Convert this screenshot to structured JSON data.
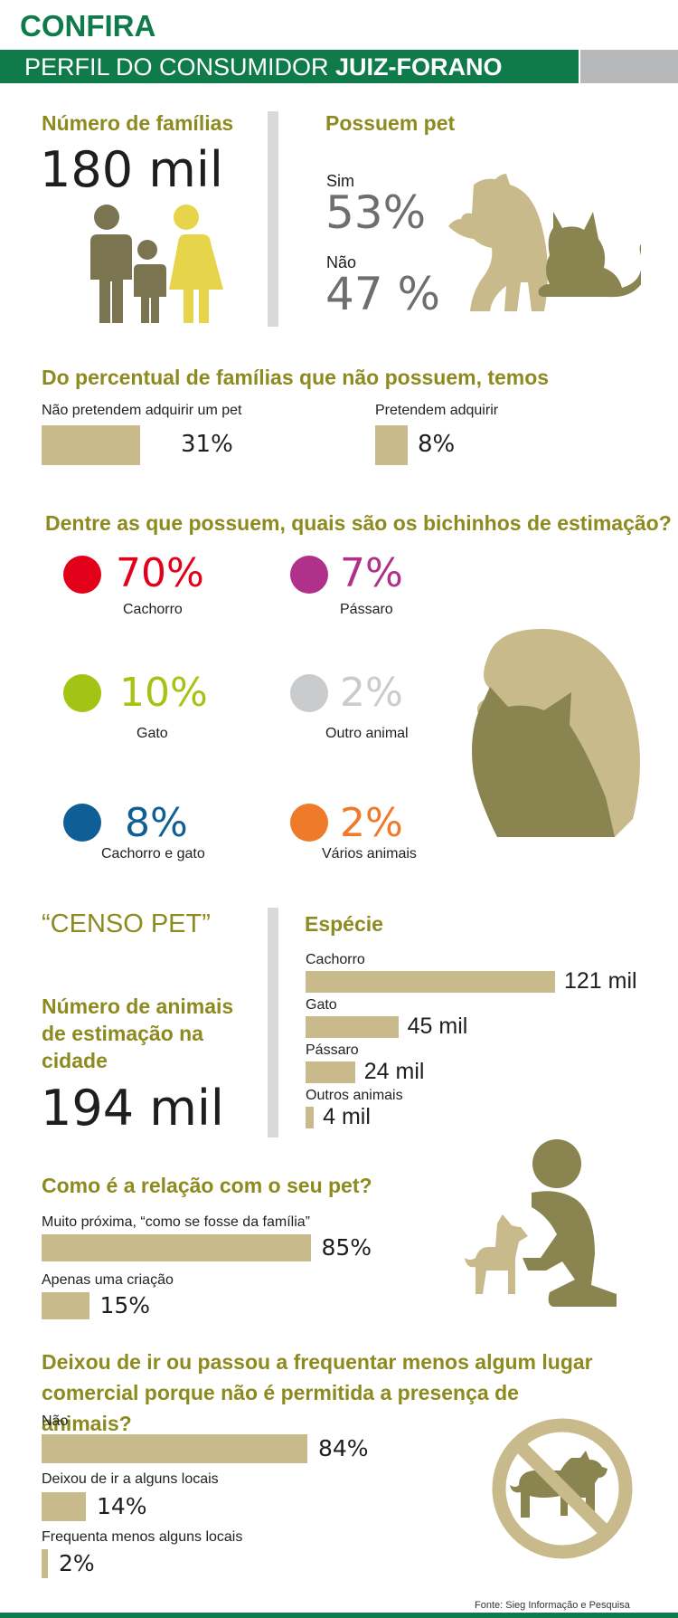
{
  "header": {
    "confira": "CONFIRA",
    "title_prefix": "PERFIL DO CONSUMIDOR ",
    "title_bold": "JUIZ-FORANO"
  },
  "familias": {
    "heading": "Número de famílias",
    "value": "180 mil"
  },
  "possuem": {
    "heading": "Possuem pet",
    "sim_label": "Sim",
    "sim_value": "53%",
    "nao_label": "Não",
    "nao_value": "47 %"
  },
  "nao_possuem": {
    "heading": "Do percentual de famílias que não possuem, temos",
    "items": [
      {
        "label": "Não pretendem adquirir um pet",
        "value": "31%",
        "fraction": 0.31
      },
      {
        "label": "Pretendem adquirir",
        "value": "8%",
        "fraction": 0.08
      }
    ]
  },
  "bichinhos": {
    "heading": "Dentre as que possuem, quais são os bichinhos de estimação?",
    "items": [
      {
        "value": "70%",
        "label": "Cachorro",
        "color": "#e2001a"
      },
      {
        "value": "7%",
        "label": "Pássaro",
        "color": "#b0318a"
      },
      {
        "value": "10%",
        "label": "Gato",
        "color": "#a3c414"
      },
      {
        "value": "2%",
        "label": "Outro animal",
        "color": "#c9cbcc"
      },
      {
        "value": "8%",
        "label": "Cachorro e gato",
        "color": "#0f5f96"
      },
      {
        "value": "2%",
        "label": "Vários animais",
        "color": "#ee7a2a"
      }
    ]
  },
  "censo": {
    "title": "“CENSO PET”",
    "subtitle": "Número  de animais de estimação na cidade",
    "value": "194 mil",
    "especie_heading": "Espécie",
    "especies": [
      {
        "label": "Cachorro",
        "value": "121 mil",
        "num": 121
      },
      {
        "label": "Gato",
        "value": "45 mil",
        "num": 45
      },
      {
        "label": "Pássaro",
        "value": "24 mil",
        "num": 24
      },
      {
        "label": "Outros animais",
        "value": "4 mil",
        "num": 4
      }
    ]
  },
  "relacao": {
    "heading": "Como é a relação com o seu pet?",
    "items": [
      {
        "label": "Muito próxima, “como se fosse da família”",
        "value": "85%",
        "fraction": 0.85
      },
      {
        "label": "Apenas uma criação",
        "value": "15%",
        "fraction": 0.15
      }
    ]
  },
  "lugares": {
    "heading": "Deixou de ir ou passou a frequentar menos algum lugar comercial porque não é permitida a presença de animais?",
    "items": [
      {
        "label": "Não",
        "value": "84%",
        "fraction": 0.84
      },
      {
        "label": "Deixou de ir a alguns locais",
        "value": "14%",
        "fraction": 0.14
      },
      {
        "label": "Frequenta menos alguns locais",
        "value": "2%",
        "fraction": 0.02
      }
    ]
  },
  "fonte": "Fonte: Sieg Informação e Pesquisa",
  "icons": [
    "family-icon",
    "dog-cat-icon",
    "dog-cat-head-icon",
    "person-with-dog-icon",
    "no-pets-icon"
  ]
}
